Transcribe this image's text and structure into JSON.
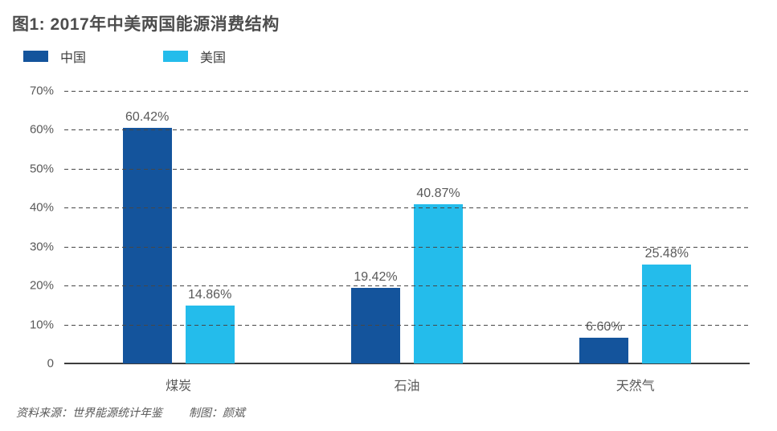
{
  "header": {
    "title": "图1: 2017年中美两国能源消费结构"
  },
  "footer": {
    "source": "资料来源：世界能源统计年鉴",
    "credit": "制图：颜斌"
  },
  "chart_data": {
    "type": "bar",
    "title": "图1: 2017年中美两国能源消费结构",
    "categories": [
      "煤炭",
      "石油",
      "天然气"
    ],
    "category_keys": [
      "coal",
      "oil",
      "natural-gas"
    ],
    "series": [
      {
        "name": "中国",
        "key": "china",
        "color": "#14549C",
        "values": [
          60.42,
          19.42,
          6.6
        ],
        "labels": [
          "60.42%",
          "19.42%",
          "6.60%"
        ]
      },
      {
        "name": "美国",
        "key": "usa",
        "color": "#24BCEB",
        "values": [
          14.86,
          40.87,
          25.48
        ],
        "labels": [
          "14.86%",
          "40.87%",
          "25.48%"
        ]
      }
    ],
    "xlabel": "",
    "ylabel": "",
    "ylim": [
      0,
      70
    ],
    "yticks": [
      "70%",
      "60%",
      "50%",
      "40%",
      "30%",
      "20%",
      "10%",
      "0"
    ],
    "grid": "horizontal-dashed",
    "legend_position": "top-left",
    "source": "资料来源：世界能源统计年鉴",
    "credit": "制图：颜斌"
  }
}
